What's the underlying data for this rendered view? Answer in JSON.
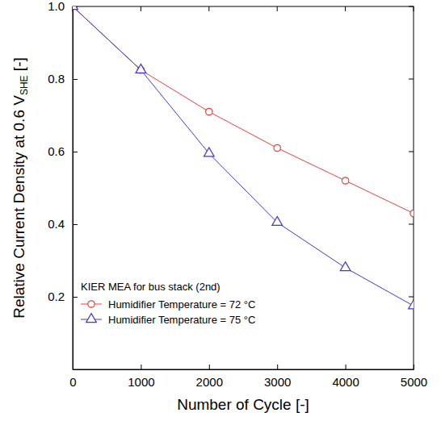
{
  "chart_data": {
    "type": "line",
    "x_label": "Number of Cycle [-]",
    "y_label": {
      "text": "Relative Current Density at 0.6 V",
      "subscript": "SHE",
      "suffix": " [-]"
    },
    "annotation": "KIER MEA for bus stack (2nd)",
    "x": [
      0,
      1000,
      2000,
      3000,
      4000,
      5000
    ],
    "series": [
      {
        "name": "Humidifier Temperature = 72 °C",
        "color": "#e8413c",
        "marker": "circle",
        "line_style": "solid",
        "values": [
          1.0,
          0.825,
          0.71,
          0.61,
          0.52,
          0.43
        ]
      },
      {
        "name": "Humidifier Temperature = 75 °C",
        "color": "#3b3bdc",
        "marker": "triangle",
        "line_style": "solid",
        "values": [
          1.0,
          0.825,
          0.595,
          0.405,
          0.28,
          0.175
        ]
      }
    ],
    "xlim": [
      0,
      5000
    ],
    "xticks": [
      0,
      1000,
      2000,
      3000,
      4000,
      5000
    ],
    "ylim": [
      0,
      1
    ],
    "yticks": [
      0.2,
      0.4,
      0.6,
      0.8,
      {
        "value": 1,
        "label": "1.0"
      }
    ],
    "grid": false,
    "legend": "lower left"
  }
}
